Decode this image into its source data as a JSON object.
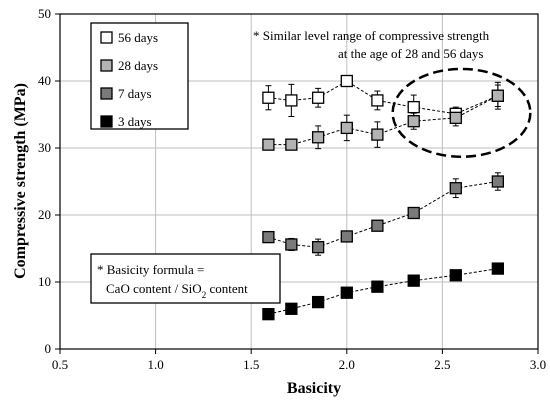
{
  "chart_data": {
    "type": "scatter",
    "xlabel": "Basicity",
    "ylabel": "Compressive strength (MPa)",
    "xlim": [
      0.5,
      3.0
    ],
    "ylim": [
      0,
      50
    ],
    "x_ticks": [
      "0.5",
      "1.0",
      "1.5",
      "2.0",
      "2.5",
      "3.0"
    ],
    "y_ticks": [
      "0",
      "10",
      "20",
      "30",
      "40",
      "50"
    ],
    "grid": true,
    "legend_position": "top-left",
    "series": [
      {
        "name": "56 days",
        "marker_fill": "#ffffff",
        "x": [
          1.59,
          1.71,
          1.85,
          2.0,
          2.16,
          2.35,
          2.57,
          2.79
        ],
        "y": [
          37.5,
          37.1,
          37.5,
          40.0,
          37.1,
          36.1,
          35.1,
          37.8
        ],
        "err": [
          1.8,
          2.4,
          1.4,
          0.8,
          1.4,
          1.8,
          1.0,
          2.0
        ],
        "trend": true
      },
      {
        "name": "28 days",
        "marker_fill": "#b3b3b3",
        "x": [
          1.59,
          1.71,
          1.85,
          2.0,
          2.16,
          2.35,
          2.57,
          2.79
        ],
        "y": [
          30.5,
          30.5,
          31.6,
          33.0,
          32.0,
          34.0,
          34.5,
          37.8
        ],
        "err": [
          0.8,
          0.8,
          1.7,
          1.9,
          1.9,
          1.2,
          1.2,
          1.6
        ],
        "trend": true
      },
      {
        "name": "7 days",
        "marker_fill": "#7a7a7a",
        "x": [
          1.59,
          1.71,
          1.85,
          2.0,
          2.16,
          2.35,
          2.57,
          2.79
        ],
        "y": [
          16.7,
          15.6,
          15.2,
          16.8,
          18.4,
          20.3,
          24.0,
          25.0
        ],
        "err": [
          0.5,
          0.9,
          1.2,
          0.6,
          0.6,
          0.6,
          1.4,
          1.3
        ],
        "trend": true
      },
      {
        "name": "3 days",
        "marker_fill": "#000000",
        "x": [
          1.59,
          1.71,
          1.85,
          2.0,
          2.16,
          2.35,
          2.57,
          2.79
        ],
        "y": [
          5.2,
          6.0,
          7.0,
          8.4,
          9.3,
          10.2,
          11.0,
          12.0
        ],
        "err": [
          0.3,
          0.3,
          0.3,
          0.3,
          0.3,
          0.3,
          0.3,
          0.3
        ],
        "trend": true
      }
    ],
    "annotations": [
      {
        "id": "similar-range",
        "lines": [
          "* Similar  level range of compressive strength",
          "at the age of 28 and 56 days"
        ],
        "highlight_ellipse_x": [
          2.24,
          2.96
        ],
        "highlight_ellipse_y": [
          28.7,
          41.8
        ]
      },
      {
        "id": "basicity-formula",
        "line1": "* Basicity formula  =",
        "line2_prefix": "CaO content / SiO",
        "line2_subscript": "2",
        "line2_suffix": " content"
      }
    ]
  }
}
